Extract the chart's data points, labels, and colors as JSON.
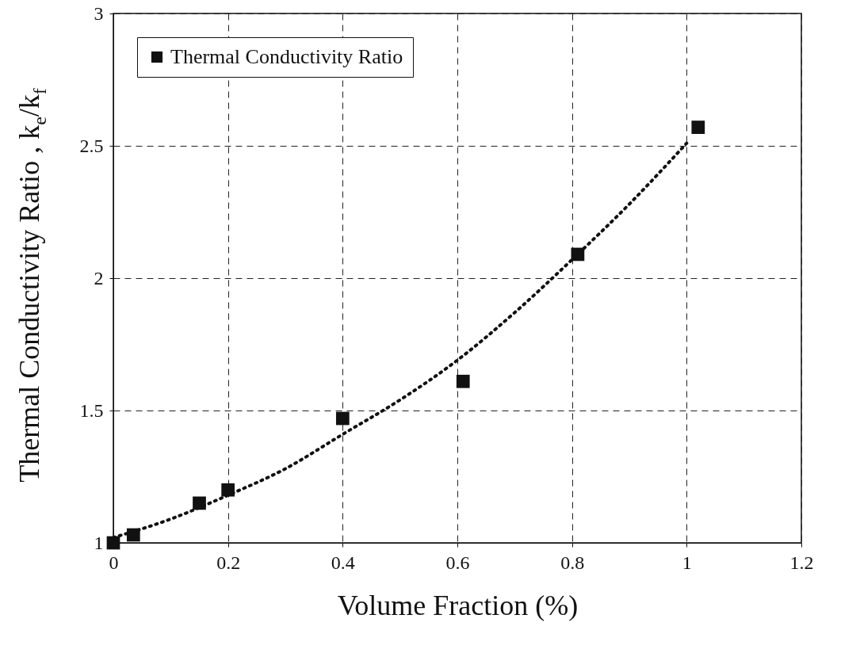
{
  "chart_data": {
    "type": "scatter",
    "xlabel": "Volume Fraction (%)",
    "ylabel": "Thermal Conductivity Ratio ,  k$_{e}$/k$_{f}$",
    "xlim": [
      0,
      1.2
    ],
    "xticks": [
      0,
      0.2,
      0.4,
      0.6,
      0.8,
      1,
      1.2
    ],
    "ylim": [
      1,
      3
    ],
    "yticks": [
      1,
      1.5,
      2,
      2.5,
      3
    ],
    "grid": true,
    "legend": "top left",
    "series": [
      {
        "name": "Thermal Conductivity Ratio",
        "color": "#111111",
        "marker": "square",
        "x": [
          0,
          0.035,
          0.15,
          0.2,
          0.4,
          0.61,
          0.81,
          1.02
        ],
        "values": [
          1.0,
          1.03,
          1.15,
          1.2,
          1.47,
          1.61,
          2.09,
          2.57
        ]
      },
      {
        "type": "line",
        "line_style": "dotted",
        "marker": "none",
        "color": "#111111",
        "x": [
          0,
          0.1,
          0.2,
          0.3,
          0.4,
          0.5,
          0.6,
          0.7,
          0.8,
          0.9,
          1.0
        ],
        "values": [
          1.02,
          1.09,
          1.18,
          1.28,
          1.41,
          1.54,
          1.69,
          1.87,
          2.07,
          2.28,
          2.51
        ]
      }
    ]
  }
}
